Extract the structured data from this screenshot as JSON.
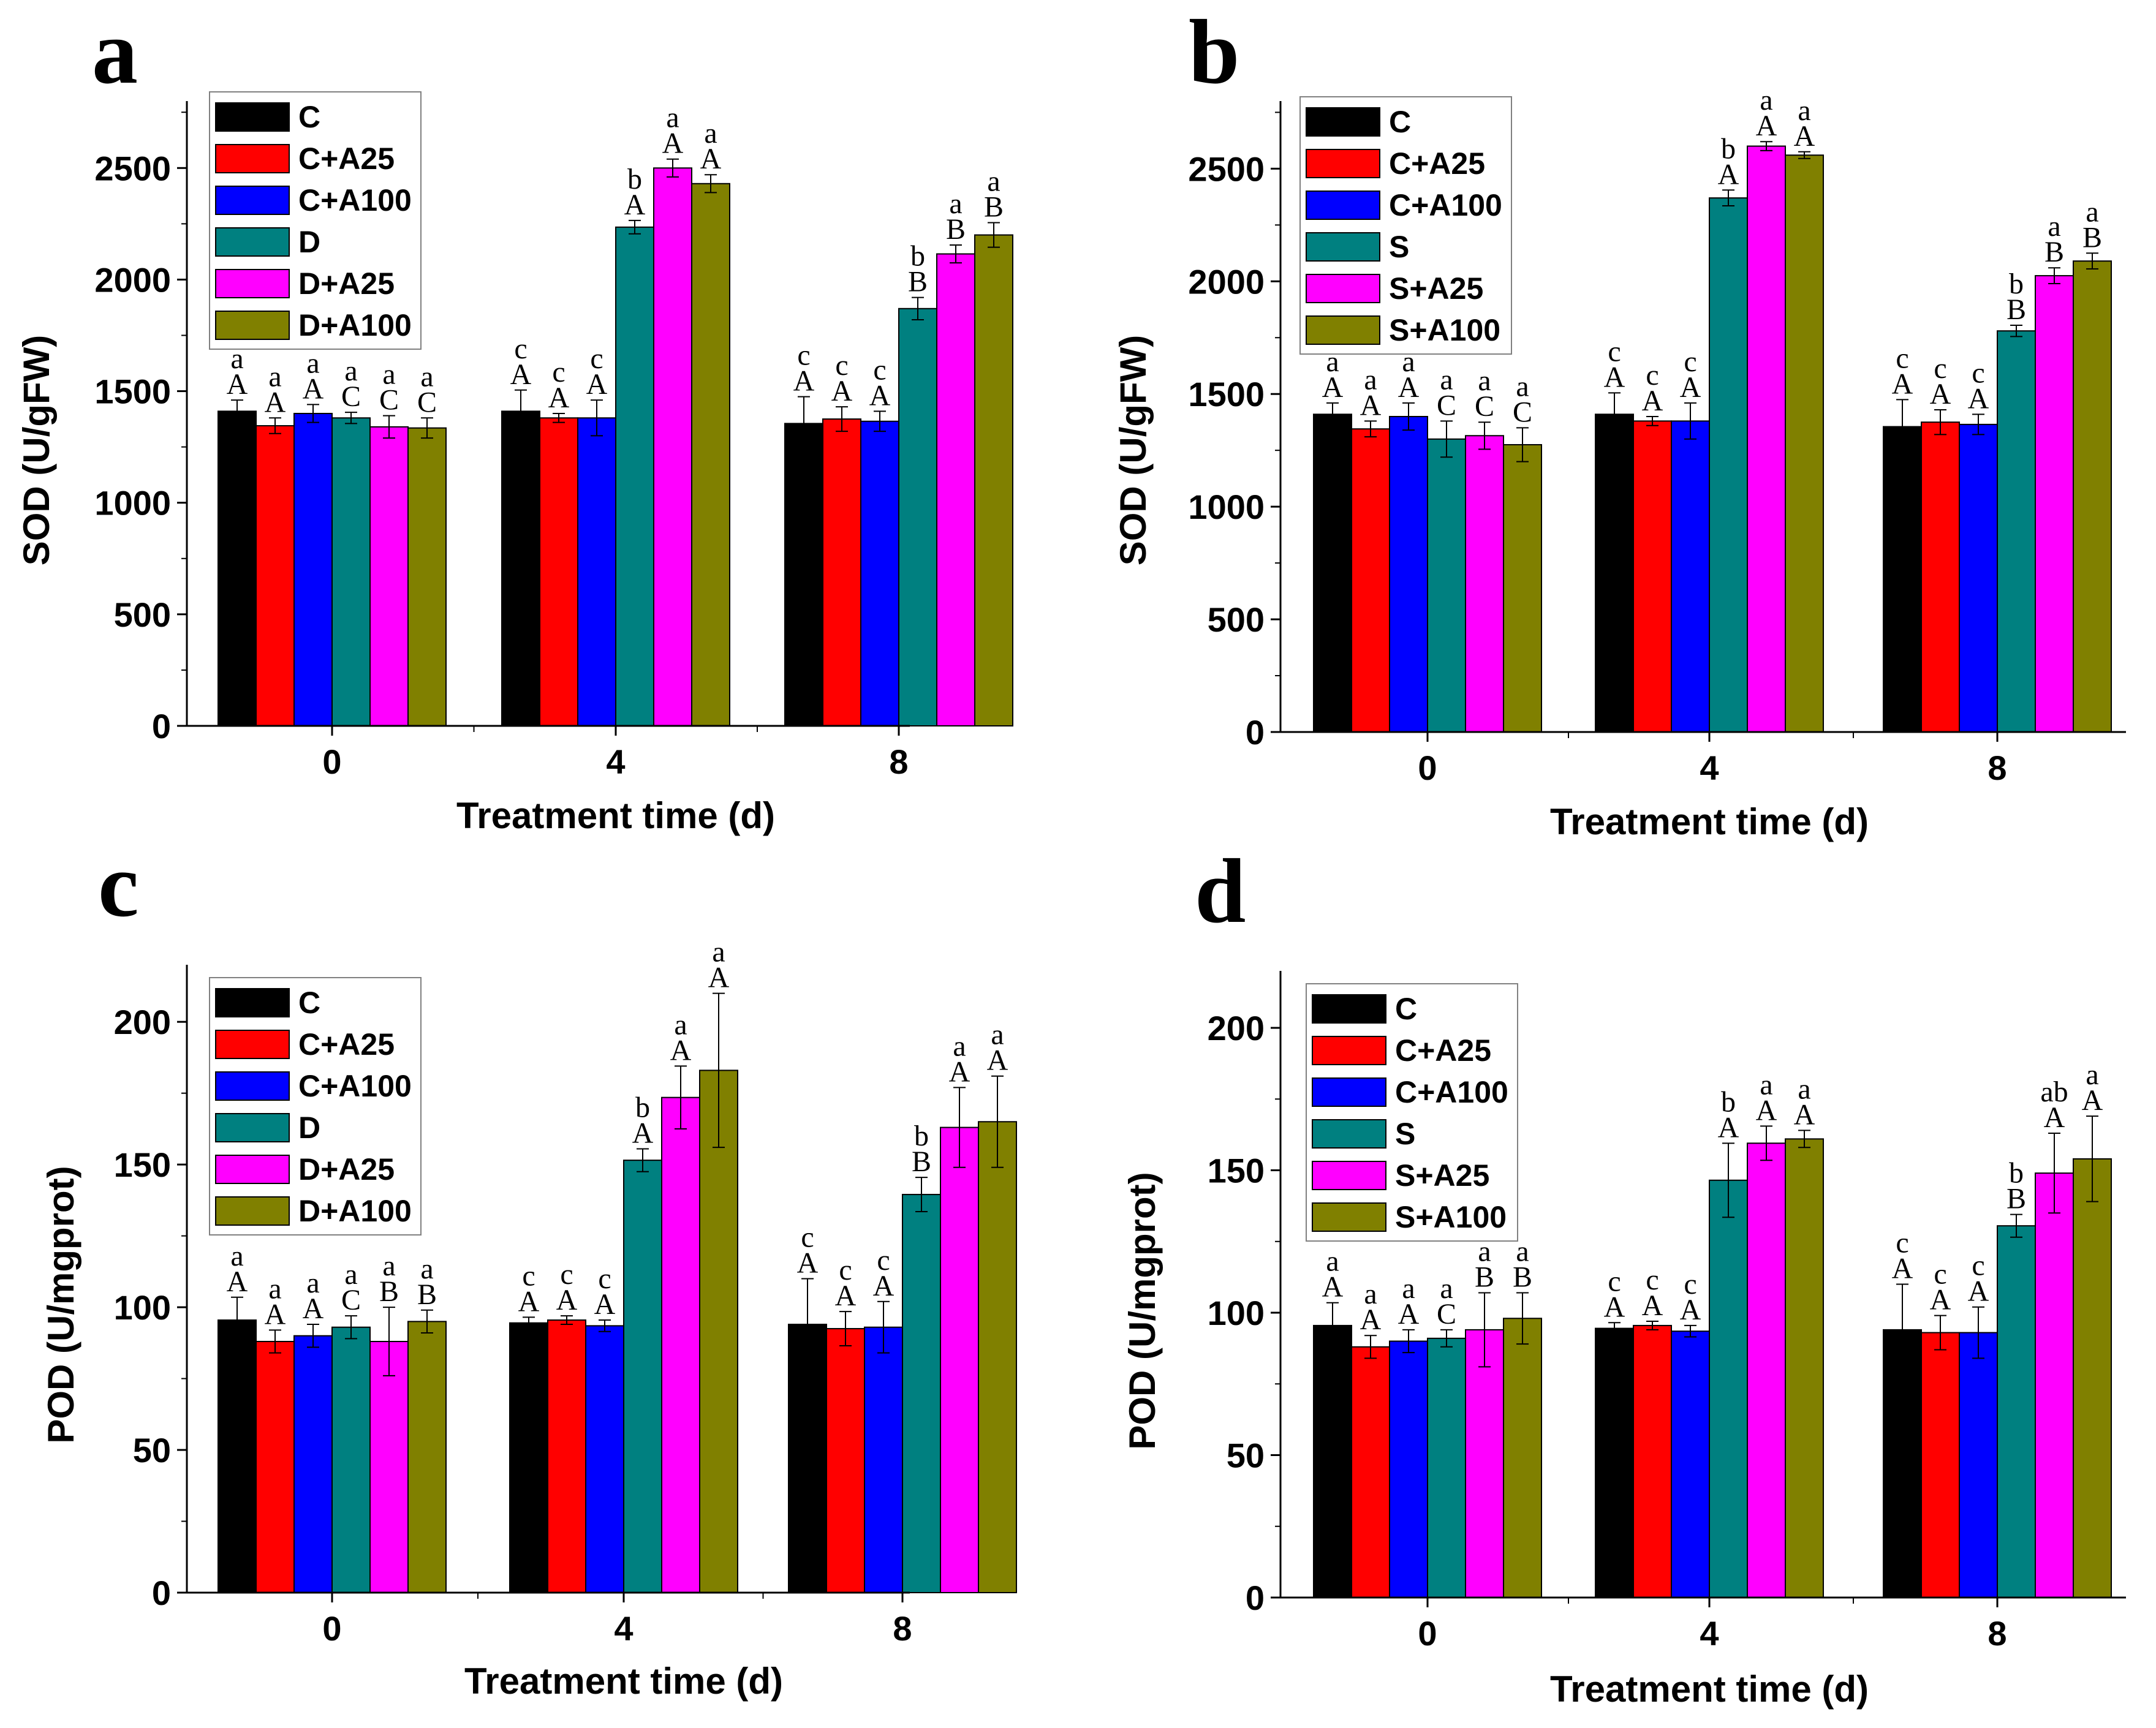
{
  "colors": {
    "C": "#000000",
    "C+A25": "#ff0000",
    "C+A100": "#0000ff",
    "stress": "#008080",
    "stress+A25": "#ff00ff",
    "stress+A100": "#808000"
  },
  "chart_data": [
    {
      "panel": "a",
      "type": "bar",
      "categories": [
        "0",
        "4",
        "8"
      ],
      "xlabel": "Treatment time (d)",
      "ylabel": "SOD (U/gFW)",
      "ylim": [
        0,
        2800
      ],
      "yticks": [
        "0",
        "500",
        "1000",
        "1500",
        "2000",
        "2500"
      ],
      "legend_position": "top-left",
      "series": [
        {
          "name": "C",
          "values": [
            1410,
            1410,
            1355
          ],
          "errors": [
            50,
            95,
            120
          ],
          "upper": [
            "A",
            "A",
            "A"
          ],
          "lower": [
            "a",
            "c",
            "c"
          ]
        },
        {
          "name": "C+A25",
          "values": [
            1345,
            1380,
            1375
          ],
          "errors": [
            35,
            20,
            55
          ],
          "upper": [
            "A",
            "A",
            "A"
          ],
          "lower": [
            "a",
            "c",
            "c"
          ]
        },
        {
          "name": "C+A100",
          "values": [
            1400,
            1380,
            1365
          ],
          "errors": [
            40,
            80,
            45
          ],
          "upper": [
            "A",
            "A",
            "A"
          ],
          "lower": [
            "a",
            "c",
            "c"
          ]
        },
        {
          "name": "D",
          "values": [
            1380,
            2235,
            1870
          ],
          "errors": [
            25,
            30,
            50
          ],
          "upper": [
            "C",
            "A",
            "B"
          ],
          "lower": [
            "a",
            "b",
            "b"
          ]
        },
        {
          "name": "D+A25",
          "values": [
            1340,
            2500,
            2115
          ],
          "errors": [
            50,
            40,
            40
          ],
          "upper": [
            "C",
            "A",
            "B"
          ],
          "lower": [
            "a",
            "a",
            "a"
          ]
        },
        {
          "name": "D+A100",
          "values": [
            1335,
            2430,
            2200
          ],
          "errors": [
            45,
            40,
            55
          ],
          "upper": [
            "C",
            "A",
            "B"
          ],
          "lower": [
            "a",
            "a",
            "a"
          ]
        }
      ]
    },
    {
      "panel": "b",
      "type": "bar",
      "categories": [
        "0",
        "4",
        "8"
      ],
      "xlabel": "Treatment time (d)",
      "ylabel": "SOD (U/gFW)",
      "ylim": [
        0,
        2800
      ],
      "yticks": [
        "0",
        "500",
        "1000",
        "1500",
        "2000",
        "2500"
      ],
      "legend_position": "top-left",
      "series": [
        {
          "name": "C",
          "values": [
            1410,
            1410,
            1355
          ],
          "errors": [
            50,
            95,
            120
          ],
          "upper": [
            "A",
            "A",
            "A"
          ],
          "lower": [
            "a",
            "c",
            "c"
          ]
        },
        {
          "name": "C+A25",
          "values": [
            1345,
            1380,
            1375
          ],
          "errors": [
            35,
            20,
            55
          ],
          "upper": [
            "A",
            "A",
            "A"
          ],
          "lower": [
            "a",
            "c",
            "c"
          ]
        },
        {
          "name": "C+A100",
          "values": [
            1400,
            1380,
            1365
          ],
          "errors": [
            60,
            80,
            45
          ],
          "upper": [
            "A",
            "A",
            "A"
          ],
          "lower": [
            "a",
            "c",
            "c"
          ]
        },
        {
          "name": "S",
          "values": [
            1300,
            2370,
            1780
          ],
          "errors": [
            80,
            35,
            25
          ],
          "upper": [
            "C",
            "A",
            "B"
          ],
          "lower": [
            "a",
            "b",
            "b"
          ]
        },
        {
          "name": "S+A25",
          "values": [
            1315,
            2600,
            2025
          ],
          "errors": [
            60,
            20,
            35
          ],
          "upper": [
            "C",
            "A",
            "B"
          ],
          "lower": [
            "a",
            "a",
            "a"
          ]
        },
        {
          "name": "S+A100",
          "values": [
            1275,
            2560,
            2090
          ],
          "errors": [
            75,
            15,
            35
          ],
          "upper": [
            "C",
            "A",
            "B"
          ],
          "lower": [
            "a",
            "a",
            "a"
          ]
        }
      ]
    },
    {
      "panel": "c",
      "type": "bar",
      "categories": [
        "0",
        "4",
        "8"
      ],
      "xlabel": "Treatment time (d)",
      "ylabel": "POD (U/mgprot)",
      "ylim": [
        0,
        220
      ],
      "yticks": [
        "0",
        "50",
        "100",
        "150",
        "200"
      ],
      "legend_position": "top-left",
      "series": [
        {
          "name": "C",
          "values": [
            95.5,
            94.5,
            94
          ],
          "errors": [
            8,
            2,
            16
          ],
          "upper": [
            "A",
            "A",
            "A"
          ],
          "lower": [
            "a",
            "c",
            "c"
          ]
        },
        {
          "name": "C+A25",
          "values": [
            88,
            95.5,
            92.5
          ],
          "errors": [
            4,
            1.5,
            6
          ],
          "upper": [
            "A",
            "A",
            "A"
          ],
          "lower": [
            "a",
            "c",
            "c"
          ]
        },
        {
          "name": "C+A100",
          "values": [
            90,
            93.5,
            93
          ],
          "errors": [
            4,
            2,
            9
          ],
          "upper": [
            "A",
            "A",
            "A"
          ],
          "lower": [
            "a",
            "c",
            "c"
          ]
        },
        {
          "name": "D",
          "values": [
            93,
            151.5,
            139.5
          ],
          "errors": [
            4,
            4,
            6
          ],
          "upper": [
            "C",
            "A",
            "B"
          ],
          "lower": [
            "a",
            "b",
            "b"
          ]
        },
        {
          "name": "D+A25",
          "values": [
            88,
            173.5,
            163
          ],
          "errors": [
            12,
            11,
            14
          ],
          "upper": [
            "B",
            "A",
            "A"
          ],
          "lower": [
            "a",
            "a",
            "a"
          ]
        },
        {
          "name": "D+A100",
          "values": [
            95,
            183,
            165
          ],
          "errors": [
            4,
            27,
            16
          ],
          "upper": [
            "B",
            "A",
            "A"
          ],
          "lower": [
            "a",
            "a",
            "a"
          ]
        }
      ]
    },
    {
      "panel": "d",
      "type": "bar",
      "categories": [
        "0",
        "4",
        "8"
      ],
      "xlabel": "Treatment time (d)",
      "ylabel": "POD (U/mgprot)",
      "ylim": [
        0,
        220
      ],
      "yticks": [
        "0",
        "50",
        "100",
        "150",
        "200"
      ],
      "legend_position": "top-left",
      "series": [
        {
          "name": "C",
          "values": [
            95.5,
            94.5,
            94
          ],
          "errors": [
            8,
            2,
            16
          ],
          "upper": [
            "A",
            "A",
            "A"
          ],
          "lower": [
            "a",
            "c",
            "c"
          ]
        },
        {
          "name": "C+A25",
          "values": [
            88,
            95.5,
            93
          ],
          "errors": [
            4,
            1.5,
            6
          ],
          "upper": [
            "A",
            "A",
            "A"
          ],
          "lower": [
            "a",
            "c",
            "c"
          ]
        },
        {
          "name": "C+A100",
          "values": [
            90,
            93.5,
            93
          ],
          "errors": [
            4,
            2,
            9
          ],
          "upper": [
            "A",
            "A",
            "A"
          ],
          "lower": [
            "a",
            "c",
            "c"
          ]
        },
        {
          "name": "S",
          "values": [
            91,
            146.5,
            130.5
          ],
          "errors": [
            3,
            13,
            4
          ],
          "upper": [
            "C",
            "A",
            "B"
          ],
          "lower": [
            "a",
            "b",
            "b"
          ]
        },
        {
          "name": "S+A25",
          "values": [
            94,
            159.5,
            149
          ],
          "errors": [
            13,
            6,
            14
          ],
          "upper": [
            "B",
            "A",
            "A"
          ],
          "lower": [
            "a",
            "a",
            "ab"
          ]
        },
        {
          "name": "S+A100",
          "values": [
            98,
            161,
            154
          ],
          "errors": [
            9,
            3,
            15
          ],
          "upper": [
            "B",
            "A",
            "A"
          ],
          "lower": [
            "a",
            "a",
            "a"
          ]
        }
      ]
    }
  ]
}
